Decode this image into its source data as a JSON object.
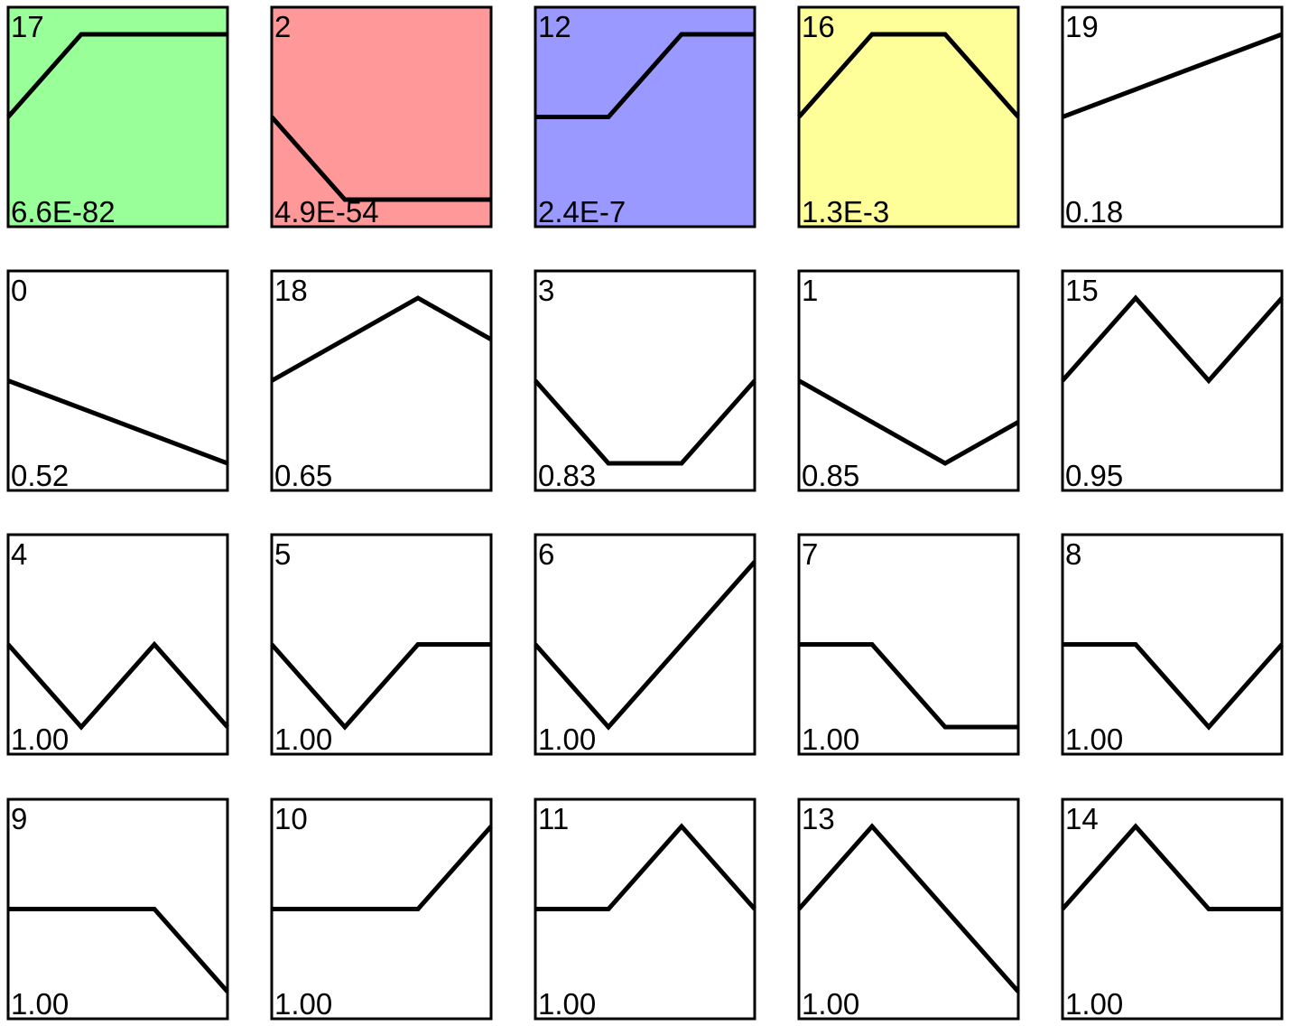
{
  "chart_data": {
    "type": "line",
    "points_per_profile": 4,
    "level_range": [
      -1,
      1
    ],
    "columns": 5,
    "profiles": [
      {
        "id": "17",
        "p_value": "6.6E-82",
        "levels": [
          0,
          1,
          1,
          1
        ],
        "color": "#99ff99"
      },
      {
        "id": "2",
        "p_value": "4.9E-54",
        "levels": [
          0,
          -1,
          -1,
          -1
        ],
        "color": "#ff9999"
      },
      {
        "id": "12",
        "p_value": "2.4E-7",
        "levels": [
          0,
          0,
          1,
          1
        ],
        "color": "#9999ff"
      },
      {
        "id": "16",
        "p_value": "1.3E-3",
        "levels": [
          0,
          1,
          1,
          0
        ],
        "color": "#ffff99"
      },
      {
        "id": "19",
        "p_value": "0.18",
        "levels": [
          0,
          0.333,
          0.667,
          1
        ],
        "color": "#ffffff"
      },
      {
        "id": "0",
        "p_value": "0.52",
        "levels": [
          0,
          -0.333,
          -0.667,
          -1
        ],
        "color": "#ffffff"
      },
      {
        "id": "18",
        "p_value": "0.65",
        "levels": [
          0,
          0.5,
          1,
          0.5
        ],
        "color": "#ffffff"
      },
      {
        "id": "3",
        "p_value": "0.83",
        "levels": [
          0,
          -1,
          -1,
          0
        ],
        "color": "#ffffff"
      },
      {
        "id": "1",
        "p_value": "0.85",
        "levels": [
          0,
          -0.5,
          -1,
          -0.5
        ],
        "color": "#ffffff"
      },
      {
        "id": "15",
        "p_value": "0.95",
        "levels": [
          0,
          1,
          0,
          1
        ],
        "color": "#ffffff"
      },
      {
        "id": "4",
        "p_value": "1.00",
        "levels": [
          0,
          -1,
          0,
          -1
        ],
        "color": "#ffffff"
      },
      {
        "id": "5",
        "p_value": "1.00",
        "levels": [
          0,
          -1,
          0,
          0
        ],
        "color": "#ffffff"
      },
      {
        "id": "6",
        "p_value": "1.00",
        "levels": [
          0,
          -1,
          0,
          1
        ],
        "color": "#ffffff"
      },
      {
        "id": "7",
        "p_value": "1.00",
        "levels": [
          0,
          0,
          -1,
          -1
        ],
        "color": "#ffffff"
      },
      {
        "id": "8",
        "p_value": "1.00",
        "levels": [
          0,
          0,
          -1,
          0
        ],
        "color": "#ffffff"
      },
      {
        "id": "9",
        "p_value": "1.00",
        "levels": [
          0,
          0,
          0,
          -1
        ],
        "color": "#ffffff"
      },
      {
        "id": "10",
        "p_value": "1.00",
        "levels": [
          0,
          0,
          0,
          1
        ],
        "color": "#ffffff"
      },
      {
        "id": "11",
        "p_value": "1.00",
        "levels": [
          0,
          0,
          1,
          0
        ],
        "color": "#ffffff"
      },
      {
        "id": "13",
        "p_value": "1.00",
        "levels": [
          0,
          1,
          0,
          -1
        ],
        "color": "#ffffff"
      },
      {
        "id": "14",
        "p_value": "1.00",
        "levels": [
          0,
          1,
          0,
          0
        ],
        "color": "#ffffff"
      }
    ]
  }
}
